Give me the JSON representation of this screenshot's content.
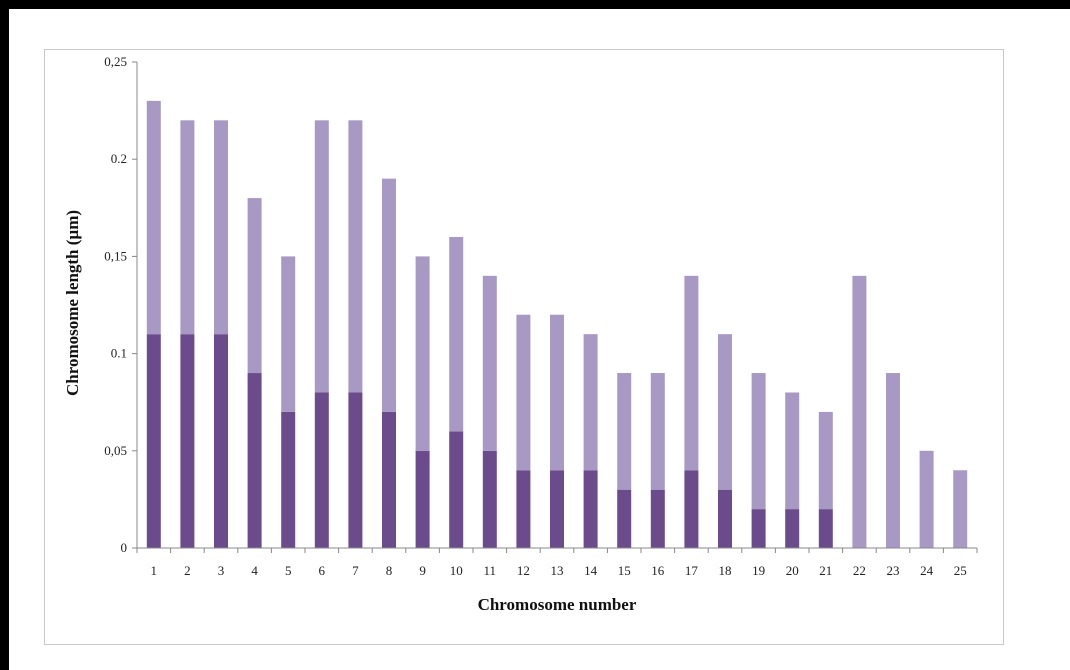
{
  "chart_data": {
    "type": "bar",
    "stacked": true,
    "xlabel": "Chromosome number",
    "ylabel": "Chromosome length (µm)",
    "ylim": [
      0,
      0.25
    ],
    "yticks": [
      0,
      0.05,
      0.1,
      0.15,
      0.2,
      0.25
    ],
    "ytick_labels": [
      "0",
      "0,05",
      "0.1",
      "0,15",
      "0.2",
      "0,25"
    ],
    "categories": [
      "1",
      "2",
      "3",
      "4",
      "5",
      "6",
      "7",
      "8",
      "9",
      "10",
      "11",
      "12",
      "13",
      "14",
      "15",
      "16",
      "17",
      "18",
      "19",
      "20",
      "21",
      "22",
      "23",
      "24",
      "25"
    ],
    "series": [
      {
        "color": "#6b4b8b",
        "values": [
          0.11,
          0.11,
          0.11,
          0.09,
          0.07,
          0.08,
          0.08,
          0.07,
          0.05,
          0.06,
          0.05,
          0.04,
          0.04,
          0.04,
          0.03,
          0.03,
          0.04,
          0.03,
          0.02,
          0.02,
          0.02,
          0,
          0,
          0,
          0
        ]
      },
      {
        "color": "#a899c4",
        "values": [
          0.12,
          0.11,
          0.11,
          0.09,
          0.08,
          0.14,
          0.14,
          0.12,
          0.1,
          0.1,
          0.09,
          0.08,
          0.08,
          0.07,
          0.06,
          0.06,
          0.1,
          0.08,
          0.07,
          0.06,
          0.05,
          0.14,
          0.09,
          0.05,
          0.04
        ]
      }
    ],
    "grid": false,
    "legend": "none"
  }
}
